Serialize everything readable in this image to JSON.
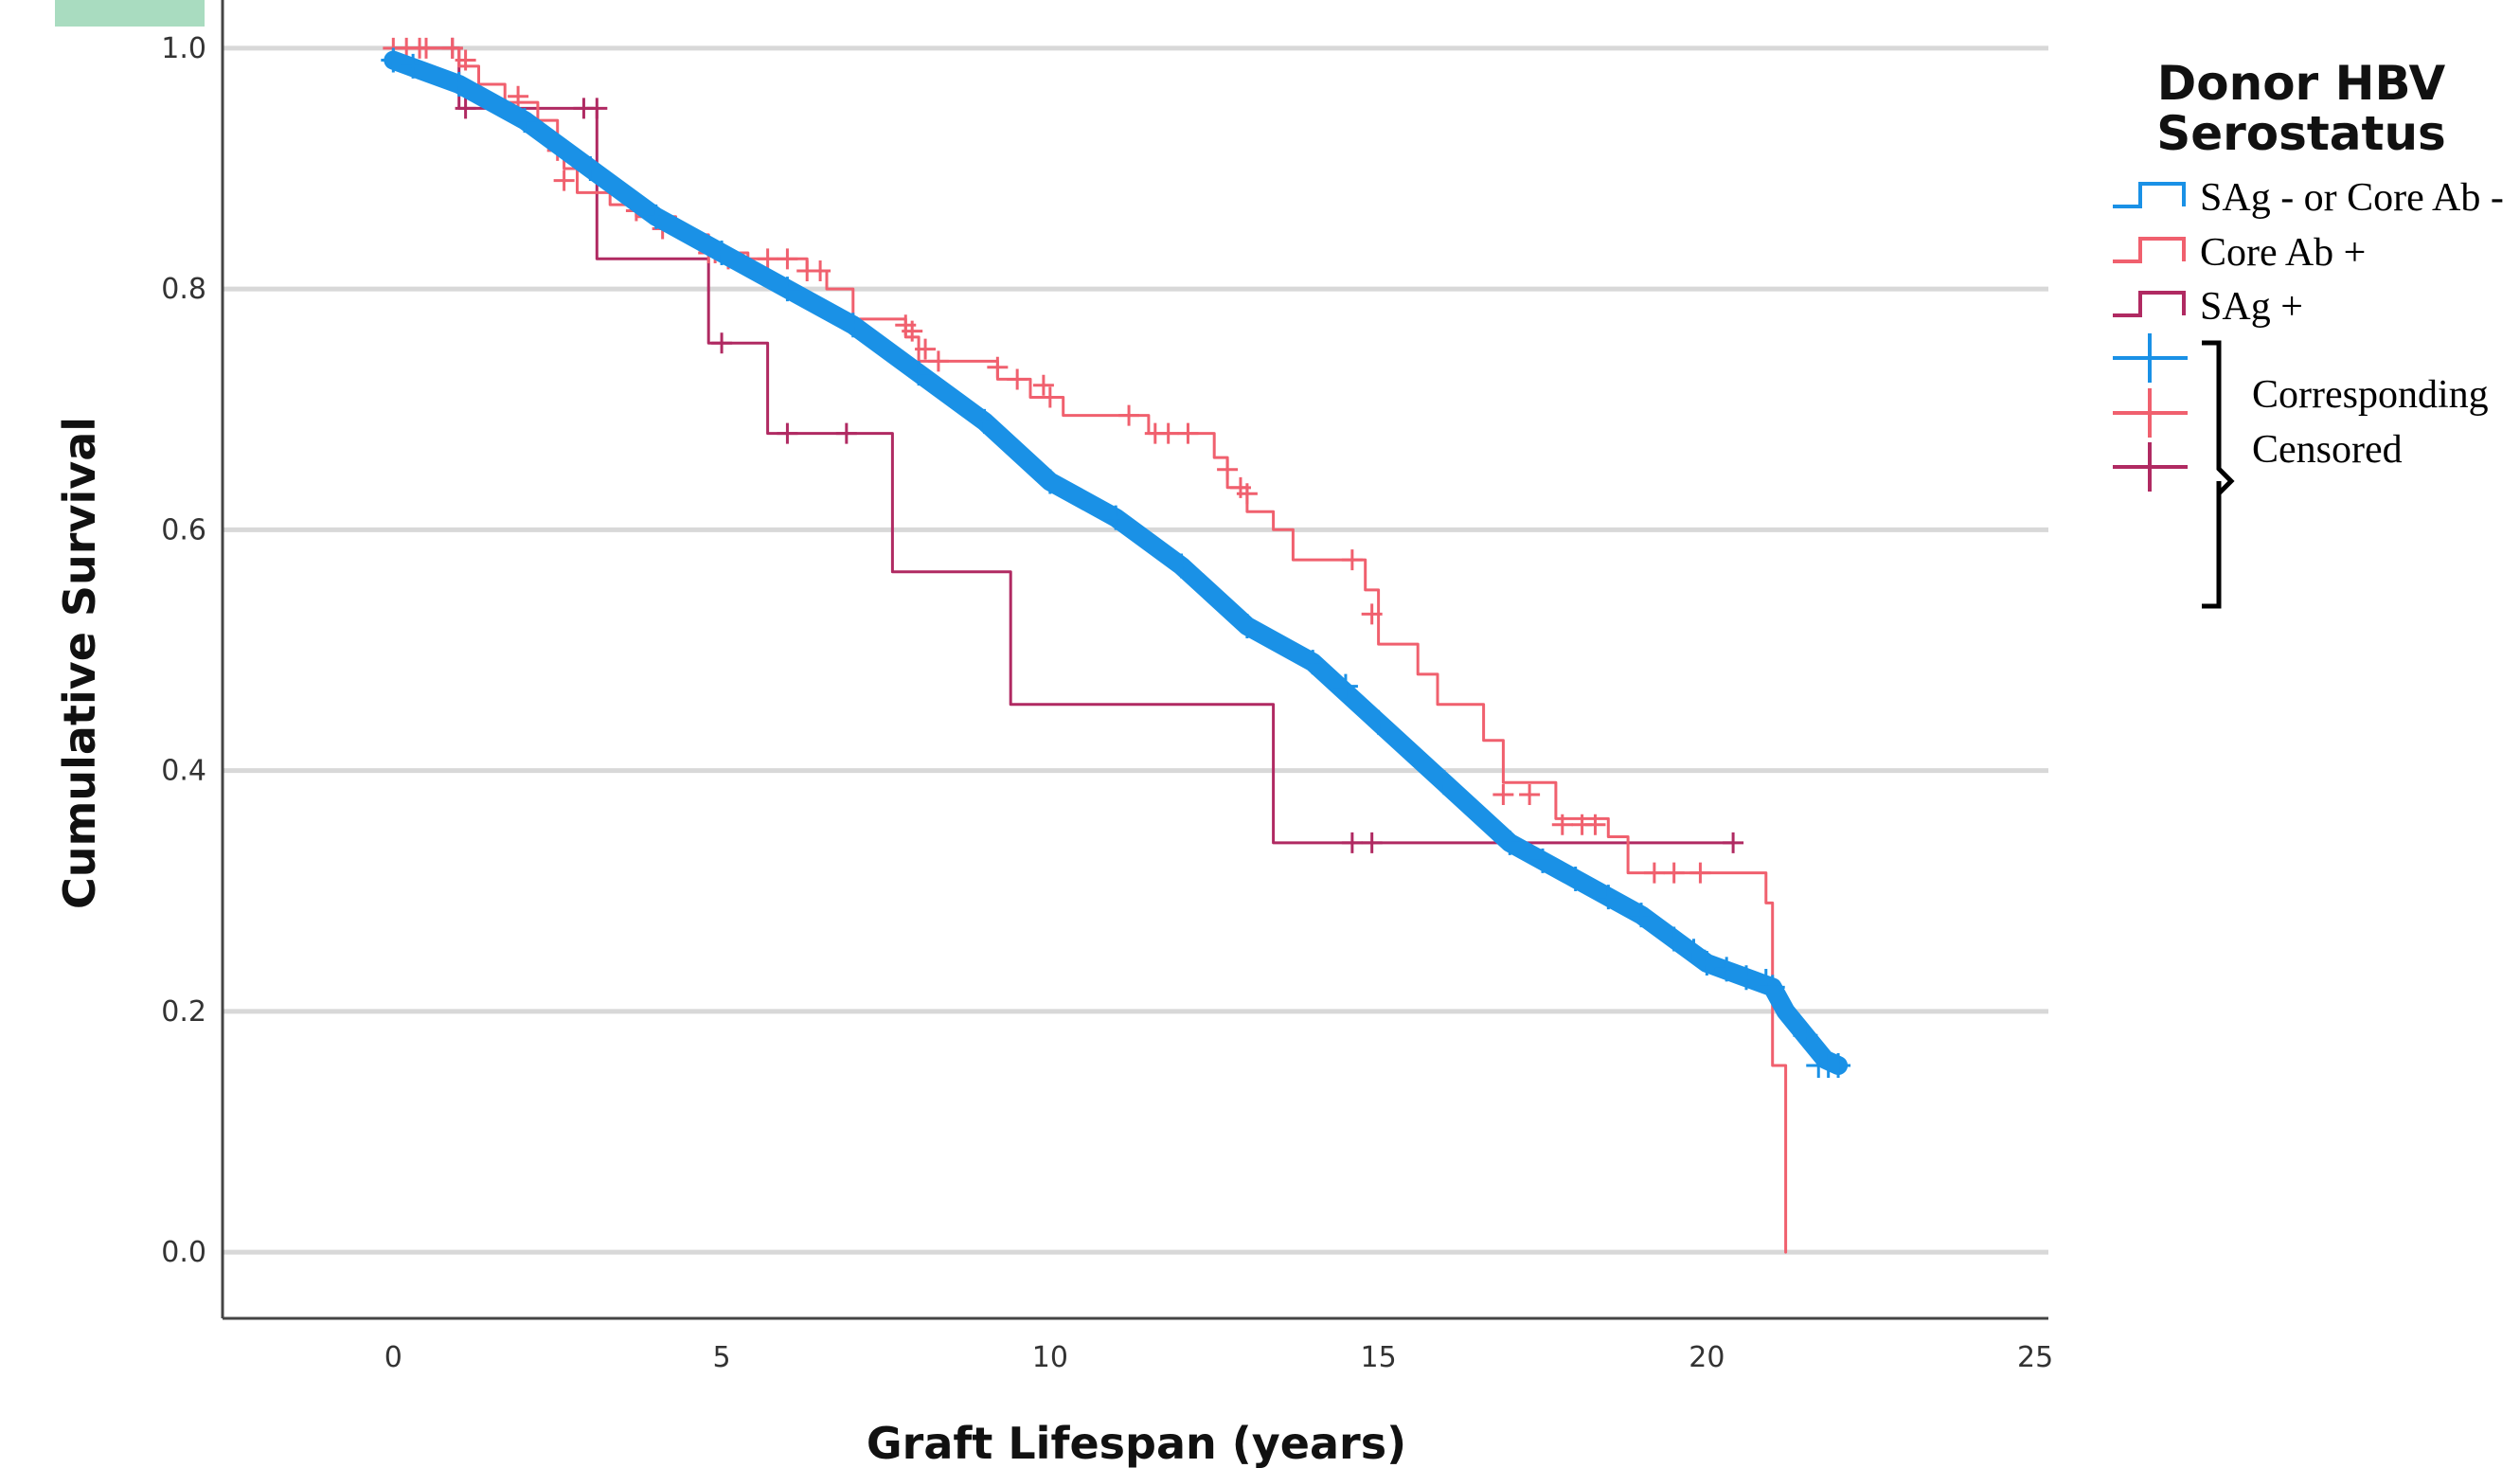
{
  "colors": {
    "neg": "#1a91e6",
    "core": "#f0606e",
    "sag": "#b02a62",
    "grid": "#d8d8d8",
    "axis": "#444444",
    "corner_tag": "#a9dcc0"
  },
  "chart_data": {
    "type": "line",
    "xlabel": "Graft Lifespan (years)",
    "ylabel": "Cumulative Survival",
    "xlim": [
      -2.6,
      25.2
    ],
    "ylim": [
      -0.055,
      1.04
    ],
    "xticks": [
      0,
      5,
      10,
      15,
      20,
      25
    ],
    "yticks": [
      0.0,
      0.2,
      0.4,
      0.6,
      0.8,
      1.0
    ],
    "xtick_labels": [
      "0",
      "5",
      "10",
      "15",
      "20",
      "25"
    ],
    "ytick_labels": [
      "0.0",
      "0.2",
      "0.4",
      "0.6",
      "0.8",
      "1.0"
    ],
    "grid": "horizontal",
    "legend": {
      "title_lines": [
        "Donor HBV",
        "Serostatus"
      ],
      "position": "right",
      "entries": [
        "SAg - or Core Ab -",
        "Core Ab +",
        "SAg +"
      ],
      "censored_lines": [
        "Corresponding",
        "Censored"
      ]
    },
    "series": [
      {
        "name": "SAg - or Core Ab -",
        "color_key": "neg",
        "step": false,
        "points": [
          [
            0,
            0.99
          ],
          [
            0.5,
            0.98
          ],
          [
            1,
            0.97
          ],
          [
            2,
            0.94
          ],
          [
            3,
            0.9
          ],
          [
            4,
            0.86
          ],
          [
            5,
            0.83
          ],
          [
            6,
            0.8
          ],
          [
            7,
            0.77
          ],
          [
            8,
            0.73
          ],
          [
            9,
            0.69
          ],
          [
            10,
            0.64
          ],
          [
            11,
            0.61
          ],
          [
            12,
            0.57
          ],
          [
            13,
            0.52
          ],
          [
            14,
            0.49
          ],
          [
            15,
            0.44
          ],
          [
            16,
            0.39
          ],
          [
            17,
            0.34
          ],
          [
            18,
            0.31
          ],
          [
            19,
            0.28
          ],
          [
            19.5,
            0.26
          ],
          [
            20,
            0.24
          ],
          [
            20.5,
            0.23
          ],
          [
            21,
            0.22
          ],
          [
            21.2,
            0.2
          ],
          [
            21.5,
            0.18
          ],
          [
            21.8,
            0.16
          ],
          [
            22,
            0.155
          ]
        ],
        "censored": [
          [
            0,
            0.99
          ],
          [
            0.3,
            0.985
          ],
          [
            1,
            0.97
          ],
          [
            2,
            0.94
          ],
          [
            3,
            0.9
          ],
          [
            4,
            0.86
          ],
          [
            5,
            0.83
          ],
          [
            6,
            0.8
          ],
          [
            7,
            0.77
          ],
          [
            8,
            0.73
          ],
          [
            9,
            0.69
          ],
          [
            10,
            0.64
          ],
          [
            11,
            0.61
          ],
          [
            12,
            0.57
          ],
          [
            13,
            0.52
          ],
          [
            14,
            0.49
          ],
          [
            14.5,
            0.47
          ],
          [
            15,
            0.44
          ],
          [
            16,
            0.39
          ],
          [
            17,
            0.34
          ],
          [
            17.5,
            0.325
          ],
          [
            18,
            0.31
          ],
          [
            18.5,
            0.295
          ],
          [
            19,
            0.28
          ],
          [
            19.5,
            0.26
          ],
          [
            19.8,
            0.25
          ],
          [
            20,
            0.24
          ],
          [
            20.3,
            0.235
          ],
          [
            20.6,
            0.228
          ],
          [
            20.9,
            0.225
          ],
          [
            21,
            0.22
          ],
          [
            21.5,
            0.18
          ],
          [
            21.7,
            0.155
          ],
          [
            21.85,
            0.155
          ],
          [
            22,
            0.155
          ]
        ]
      },
      {
        "name": "Core Ab +",
        "color_key": "core",
        "step": true,
        "points": [
          [
            0,
            1.0
          ],
          [
            1,
            1.0
          ],
          [
            1,
            0.985
          ],
          [
            1.3,
            0.985
          ],
          [
            1.3,
            0.97
          ],
          [
            1.7,
            0.97
          ],
          [
            1.7,
            0.955
          ],
          [
            2.2,
            0.955
          ],
          [
            2.2,
            0.94
          ],
          [
            2.5,
            0.94
          ],
          [
            2.5,
            0.92
          ],
          [
            2.6,
            0.92
          ],
          [
            2.6,
            0.9
          ],
          [
            2.8,
            0.9
          ],
          [
            2.8,
            0.88
          ],
          [
            3.3,
            0.88
          ],
          [
            3.3,
            0.87
          ],
          [
            3.7,
            0.87
          ],
          [
            3.7,
            0.86
          ],
          [
            4.3,
            0.86
          ],
          [
            4.3,
            0.845
          ],
          [
            4.8,
            0.845
          ],
          [
            4.8,
            0.83
          ],
          [
            5.4,
            0.83
          ],
          [
            5.4,
            0.825
          ],
          [
            6.3,
            0.825
          ],
          [
            6.3,
            0.815
          ],
          [
            6.6,
            0.815
          ],
          [
            6.6,
            0.8
          ],
          [
            7,
            0.8
          ],
          [
            7,
            0.775
          ],
          [
            7.8,
            0.775
          ],
          [
            7.8,
            0.76
          ],
          [
            8,
            0.76
          ],
          [
            8,
            0.74
          ],
          [
            9.2,
            0.74
          ],
          [
            9.2,
            0.725
          ],
          [
            9.7,
            0.725
          ],
          [
            9.7,
            0.71
          ],
          [
            10.2,
            0.71
          ],
          [
            10.2,
            0.695
          ],
          [
            11.5,
            0.695
          ],
          [
            11.5,
            0.68
          ],
          [
            12.5,
            0.68
          ],
          [
            12.5,
            0.66
          ],
          [
            12.7,
            0.66
          ],
          [
            12.7,
            0.635
          ],
          [
            13,
            0.635
          ],
          [
            13,
            0.615
          ],
          [
            13.4,
            0.615
          ],
          [
            13.4,
            0.6
          ],
          [
            13.7,
            0.6
          ],
          [
            13.7,
            0.575
          ],
          [
            14.8,
            0.575
          ],
          [
            14.8,
            0.55
          ],
          [
            15,
            0.55
          ],
          [
            15,
            0.505
          ],
          [
            15.6,
            0.505
          ],
          [
            15.6,
            0.48
          ],
          [
            15.9,
            0.48
          ],
          [
            15.9,
            0.455
          ],
          [
            16.6,
            0.455
          ],
          [
            16.6,
            0.425
          ],
          [
            16.9,
            0.425
          ],
          [
            16.9,
            0.39
          ],
          [
            17.7,
            0.39
          ],
          [
            17.7,
            0.36
          ],
          [
            18.5,
            0.36
          ],
          [
            18.5,
            0.345
          ],
          [
            18.8,
            0.345
          ],
          [
            18.8,
            0.315
          ],
          [
            20.9,
            0.315
          ],
          [
            20.9,
            0.29
          ],
          [
            21,
            0.29
          ],
          [
            21,
            0.155
          ],
          [
            21.2,
            0.155
          ],
          [
            21.2,
            0.0
          ]
        ],
        "censored": [
          [
            0,
            1.0
          ],
          [
            0.2,
            1.0
          ],
          [
            0.4,
            1.0
          ],
          [
            0.5,
            1.0
          ],
          [
            0.9,
            1.0
          ],
          [
            1.1,
            0.99
          ],
          [
            1.9,
            0.96
          ],
          [
            2.5,
            0.915
          ],
          [
            2.6,
            0.89
          ],
          [
            3.7,
            0.865
          ],
          [
            4.1,
            0.85
          ],
          [
            4.8,
            0.83
          ],
          [
            4.9,
            0.83
          ],
          [
            5.1,
            0.825
          ],
          [
            5.7,
            0.825
          ],
          [
            6,
            0.825
          ],
          [
            6.3,
            0.815
          ],
          [
            6.5,
            0.815
          ],
          [
            7.8,
            0.77
          ],
          [
            7.9,
            0.765
          ],
          [
            8.1,
            0.75
          ],
          [
            8.3,
            0.74
          ],
          [
            9.2,
            0.735
          ],
          [
            9.5,
            0.725
          ],
          [
            9.9,
            0.72
          ],
          [
            10,
            0.71
          ],
          [
            11.2,
            0.695
          ],
          [
            11.6,
            0.68
          ],
          [
            11.8,
            0.68
          ],
          [
            12.1,
            0.68
          ],
          [
            12.7,
            0.65
          ],
          [
            12.9,
            0.635
          ],
          [
            13,
            0.63
          ],
          [
            14.6,
            0.575
          ],
          [
            14.9,
            0.53
          ],
          [
            16.9,
            0.38
          ],
          [
            17.3,
            0.38
          ],
          [
            17.8,
            0.355
          ],
          [
            18.1,
            0.355
          ],
          [
            18.3,
            0.355
          ],
          [
            19.2,
            0.315
          ],
          [
            19.5,
            0.315
          ],
          [
            19.9,
            0.315
          ]
        ]
      },
      {
        "name": "SAg +",
        "color_key": "sag",
        "step": true,
        "points": [
          [
            0,
            1.0
          ],
          [
            1,
            1.0
          ],
          [
            1,
            0.95
          ],
          [
            3.1,
            0.95
          ],
          [
            3.1,
            0.825
          ],
          [
            4.8,
            0.825
          ],
          [
            4.8,
            0.755
          ],
          [
            5.7,
            0.755
          ],
          [
            5.7,
            0.68
          ],
          [
            7.6,
            0.68
          ],
          [
            7.6,
            0.565
          ],
          [
            9.4,
            0.565
          ],
          [
            9.4,
            0.455
          ],
          [
            13.4,
            0.455
          ],
          [
            13.4,
            0.34
          ],
          [
            20.4,
            0.34
          ]
        ],
        "censored": [
          [
            0.9,
            1.0
          ],
          [
            1.1,
            0.95
          ],
          [
            2.9,
            0.95
          ],
          [
            3.1,
            0.95
          ],
          [
            5,
            0.755
          ],
          [
            6,
            0.68
          ],
          [
            6.9,
            0.68
          ],
          [
            14.6,
            0.34
          ],
          [
            14.9,
            0.34
          ],
          [
            20.4,
            0.34
          ]
        ]
      }
    ]
  }
}
